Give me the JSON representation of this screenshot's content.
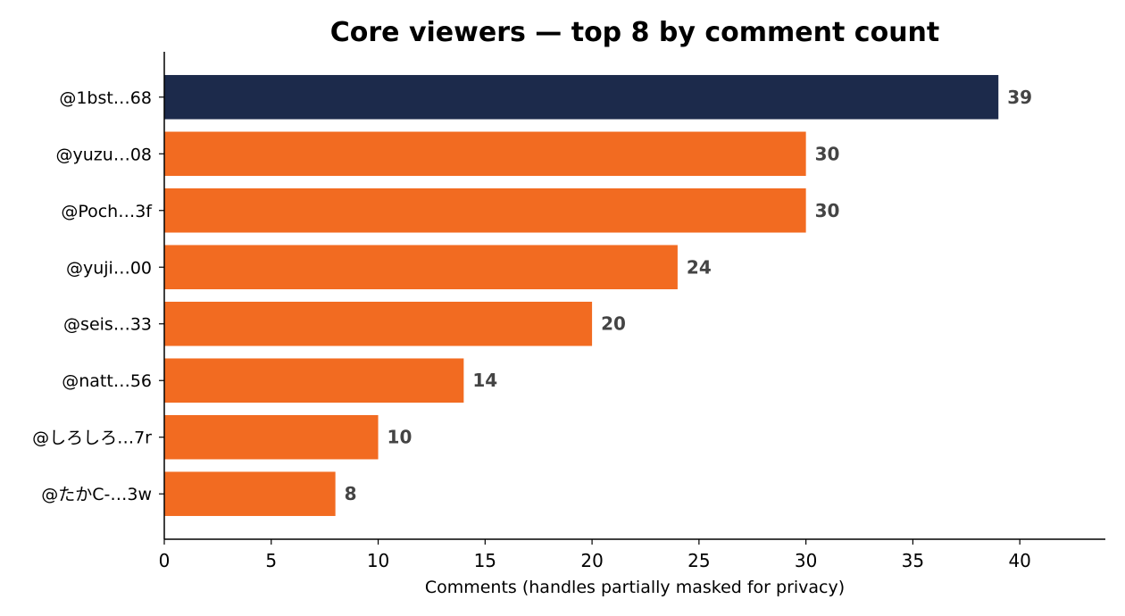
{
  "chart_data": {
    "type": "bar",
    "orientation": "horizontal",
    "title": "Core viewers — top 8 by comment count",
    "xlabel": "Comments (handles partially masked for privacy)",
    "ylabel": "",
    "categories": [
      "@1bst…68",
      "@yuzu…08",
      "@Poch…3f",
      "@yuji…00",
      "@seis…33",
      "@natt…56",
      "@しろしろ…7r",
      "@たかC-…3w"
    ],
    "values": [
      39,
      30,
      30,
      24,
      20,
      14,
      10,
      8
    ],
    "value_labels": [
      "39",
      "30",
      "30",
      "24",
      "20",
      "14",
      "10",
      "8"
    ],
    "xlim": [
      0,
      44
    ],
    "xticks": [
      0,
      5,
      10,
      15,
      20,
      25,
      30,
      35,
      40
    ],
    "xtick_labels": [
      "0",
      "5",
      "10",
      "15",
      "20",
      "25",
      "30",
      "35",
      "40"
    ],
    "grid": false,
    "highlight_index": 0,
    "colors": {
      "highlight": "#1c2a4b",
      "default": "#f26b21",
      "value_label": "#444444",
      "axis": "#000000"
    }
  }
}
